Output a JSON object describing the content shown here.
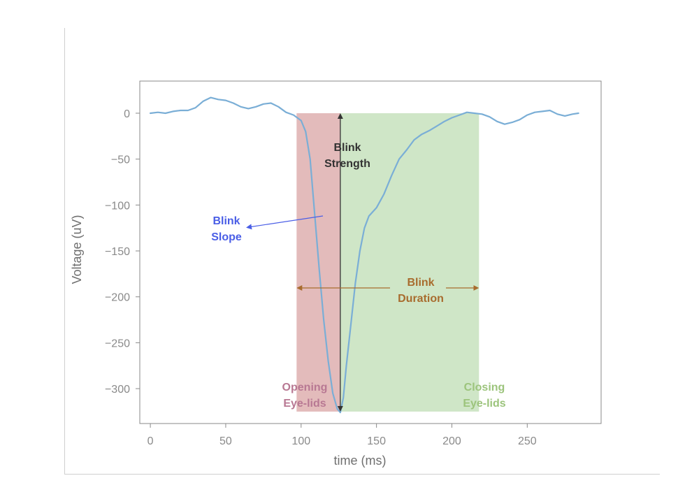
{
  "chart_data": {
    "type": "line",
    "title": "",
    "xlabel": "time (ms)",
    "ylabel": "Voltage (uV)",
    "xlim": [
      -7,
      299
    ],
    "ylim": [
      -338,
      35
    ],
    "xticks": [
      0,
      50,
      100,
      150,
      200,
      250
    ],
    "yticks": [
      0,
      -50,
      -100,
      -150,
      -200,
      -250,
      -300
    ],
    "grid": false,
    "series": [
      {
        "color": "#7aaed6",
        "x": [
          0,
          5,
          10,
          15,
          20,
          25,
          30,
          35,
          40,
          45,
          50,
          55,
          60,
          65,
          70,
          75,
          80,
          85,
          90,
          95,
          100,
          103,
          106,
          109,
          112,
          115,
          118,
          121,
          124,
          126,
          128,
          130,
          133,
          136,
          139,
          142,
          145,
          150,
          155,
          160,
          165,
          170,
          175,
          180,
          185,
          190,
          195,
          200,
          205,
          210,
          215,
          220,
          225,
          230,
          235,
          240,
          245,
          250,
          255,
          260,
          265,
          270,
          275,
          280,
          284
        ],
        "y": [
          0,
          1,
          0,
          2,
          3,
          3,
          6,
          13,
          17,
          15,
          14,
          11,
          7,
          5,
          7,
          10,
          11,
          7,
          1,
          -2,
          -8,
          -20,
          -50,
          -110,
          -170,
          -225,
          -270,
          -305,
          -322,
          -326,
          -310,
          -275,
          -230,
          -185,
          -150,
          -125,
          -112,
          -103,
          -88,
          -68,
          -50,
          -40,
          -29,
          -23,
          -19,
          -14,
          -9,
          -5,
          -2,
          1,
          0,
          -1,
          -4,
          -9,
          -12,
          -10,
          -7,
          -2,
          1,
          2,
          3,
          -1,
          -3,
          -1,
          0
        ]
      }
    ],
    "regions": [
      {
        "name": "Opening Eye-lids",
        "x_start": 97,
        "x_end": 126,
        "y_start": 0,
        "y_end": -325,
        "color": "#c87878"
      },
      {
        "name": "Closing Eye-lids",
        "x_start": 126,
        "x_end": 218,
        "y_start": 0,
        "y_end": -325,
        "color": "#8cc47a"
      }
    ],
    "annotations": {
      "strength": {
        "lines": [
          "Blink",
          "Strength"
        ],
        "color": "#333333",
        "x": 126,
        "y_top": 0,
        "y_bottom": -325
      },
      "slope": {
        "lines": [
          "Blink",
          "Slope"
        ],
        "color": "#4a5ee6"
      },
      "duration": {
        "lines": [
          "Blink",
          "Duration"
        ],
        "color": "#a86c2e",
        "x_start": 97,
        "x_end": 218
      },
      "opening": {
        "lines": [
          "Opening",
          "Eye-lids"
        ],
        "color": "#b87893"
      },
      "closing": {
        "lines": [
          "Closing",
          "Eye-lids"
        ],
        "color": "#9cc47c"
      }
    }
  }
}
